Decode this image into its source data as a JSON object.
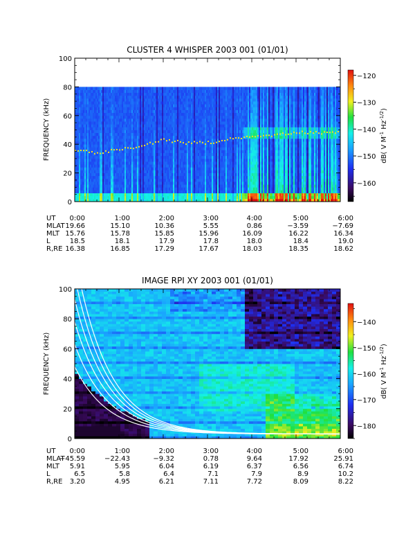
{
  "chart_data": [
    {
      "type": "heatmap",
      "title": "CLUSTER 4 WHISPER 2003 001 (01/01)",
      "ylabel": "FREQUENCY (kHz)",
      "ylim": [
        0,
        100
      ],
      "yticks": [
        "0",
        "20",
        "40",
        "60",
        "80",
        "100"
      ],
      "xlim_hours": [
        0,
        6
      ],
      "data_freq_max": 80,
      "colorbar": {
        "label_parts": [
          "dB( V M",
          "-1",
          " Hz",
          "-1/2",
          ")"
        ],
        "range": [
          -167,
          -118
        ],
        "ticks": [
          "-120",
          "-130",
          "-140",
          "-150",
          "-160"
        ]
      },
      "ephemeris": {
        "row_labels": [
          "UT",
          "MLAT",
          "MLT",
          "L",
          "R,RE"
        ],
        "columns": [
          [
            "0:00",
            "19.66",
            "15.76",
            "18.5",
            "16.38"
          ],
          [
            "1:00",
            "15.10",
            "15.78",
            "18.1",
            "16.85"
          ],
          [
            "2:00",
            "10.36",
            "15.85",
            "17.9",
            "17.29"
          ],
          [
            "3:00",
            "5.55",
            "15.96",
            "17.8",
            "17.67"
          ],
          [
            "4:00",
            "0.86",
            "16.09",
            "18.0",
            "18.03"
          ],
          [
            "5:00",
            "-3.59",
            "16.22",
            "18.4",
            "18.35"
          ],
          [
            "6:00",
            "-7.69",
            "16.34",
            "19.0",
            "18.62"
          ]
        ]
      },
      "features": {
        "plasma_line_khz": [
          [
            0,
            36
          ],
          [
            0.5,
            34
          ],
          [
            1.0,
            36
          ],
          [
            1.5,
            39
          ],
          [
            2.0,
            43
          ],
          [
            2.5,
            41
          ],
          [
            3.0,
            41
          ],
          [
            3.6,
            44
          ],
          [
            4.5,
            46
          ],
          [
            5.0,
            48
          ],
          [
            6.0,
            48
          ]
        ]
      }
    },
    {
      "type": "heatmap",
      "title": "IMAGE RPI XY 2003 001 (01/01)",
      "ylabel": "FREQUENCY (kHz)",
      "ylim": [
        0,
        100
      ],
      "yticks": [
        "0",
        "20",
        "40",
        "60",
        "80",
        "100"
      ],
      "xlim_hours": [
        0,
        6
      ],
      "colorbar": {
        "label_parts": [
          "dB( V M",
          "-1",
          " Hz",
          "-1/2",
          ")"
        ],
        "range": [
          -185,
          -133
        ],
        "ticks": [
          "-140",
          "-150",
          "-160",
          "-170",
          "-180"
        ]
      },
      "ephemeris": {
        "row_labels": [
          "UT",
          "MLAT",
          "MLT",
          "L",
          "R,RE"
        ],
        "columns": [
          [
            "0:00",
            "-45.59",
            "5.91",
            "6.5",
            "3.20"
          ],
          [
            "1:00",
            "-22.43",
            "5.95",
            "5.8",
            "4.95"
          ],
          [
            "2:00",
            "-9.32",
            "6.04",
            "6.4",
            "6.21"
          ],
          [
            "3:00",
            "0.78",
            "6.19",
            "7.1",
            "7.11"
          ],
          [
            "4:00",
            "9.64",
            "6.37",
            "7.9",
            "7.72"
          ],
          [
            "5:00",
            "17.92",
            "6.56",
            "8.9",
            "8.09"
          ],
          [
            "6:00",
            "25.91",
            "6.74",
            "10.2",
            "8.22"
          ]
        ]
      },
      "features": {
        "white_curves_khz_at_0h": [
          45,
          60,
          75,
          90,
          105,
          120
        ]
      }
    }
  ]
}
